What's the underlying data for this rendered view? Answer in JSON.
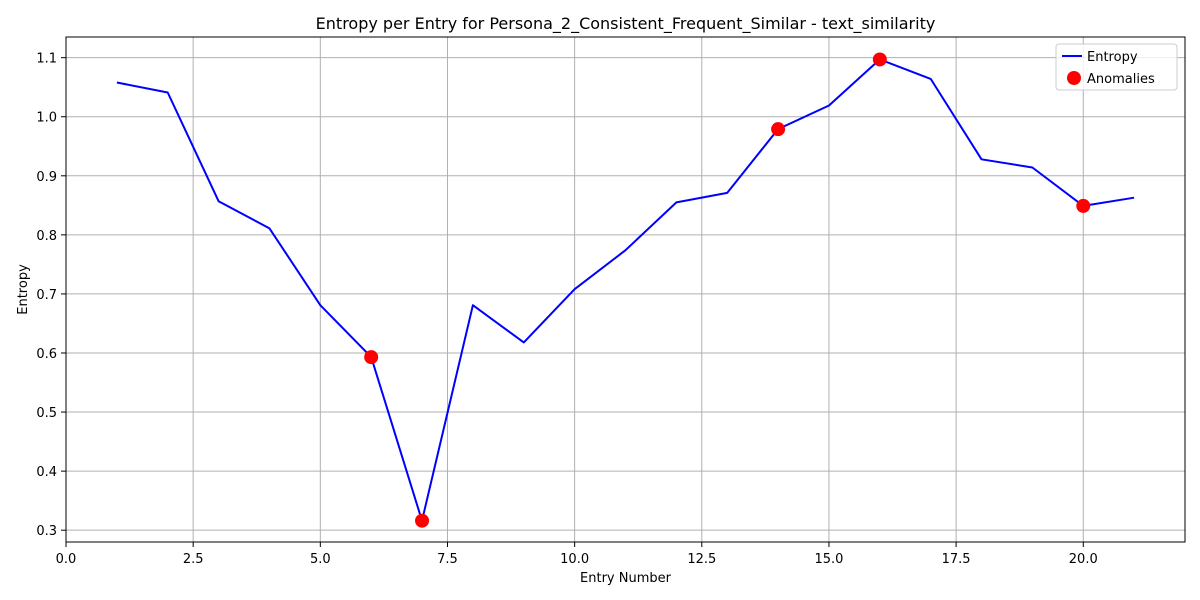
{
  "chart_data": {
    "type": "line",
    "title": "Entropy per Entry for Persona_2_Consistent_Frequent_Similar - text_similarity",
    "xlabel": "Entry Number",
    "ylabel": "Entropy",
    "xlim": [
      0,
      22
    ],
    "ylim": [
      0.28,
      1.135
    ],
    "xticks": [
      0.0,
      2.5,
      5.0,
      7.5,
      10.0,
      12.5,
      15.0,
      17.5,
      20.0
    ],
    "xtick_labels": [
      "0.0",
      "2.5",
      "5.0",
      "7.5",
      "10.0",
      "12.5",
      "15.0",
      "17.5",
      "20.0"
    ],
    "yticks": [
      0.3,
      0.4,
      0.5,
      0.6,
      0.7,
      0.8,
      0.9,
      1.0,
      1.1
    ],
    "ytick_labels": [
      "0.3",
      "0.4",
      "0.5",
      "0.6",
      "0.7",
      "0.8",
      "0.9",
      "1.0",
      "1.1"
    ],
    "grid": true,
    "legend_position": "top-right",
    "series": [
      {
        "name": "Entropy",
        "type": "line",
        "color": "#0000ff",
        "x": [
          1,
          2,
          3,
          4,
          5,
          6,
          7,
          8,
          9,
          10,
          11,
          12,
          13,
          14,
          15,
          16,
          17,
          18,
          19,
          20,
          21
        ],
        "y": [
          1.058,
          1.041,
          0.857,
          0.811,
          0.681,
          0.593,
          0.316,
          0.681,
          0.618,
          0.708,
          0.774,
          0.855,
          0.871,
          0.979,
          1.019,
          1.097,
          1.064,
          0.928,
          0.914,
          0.849,
          0.863
        ]
      },
      {
        "name": "Anomalies",
        "type": "scatter",
        "color": "#ff0000",
        "x": [
          6,
          7,
          14,
          16,
          20
        ],
        "y": [
          0.593,
          0.316,
          0.979,
          1.097,
          0.849
        ]
      }
    ]
  }
}
